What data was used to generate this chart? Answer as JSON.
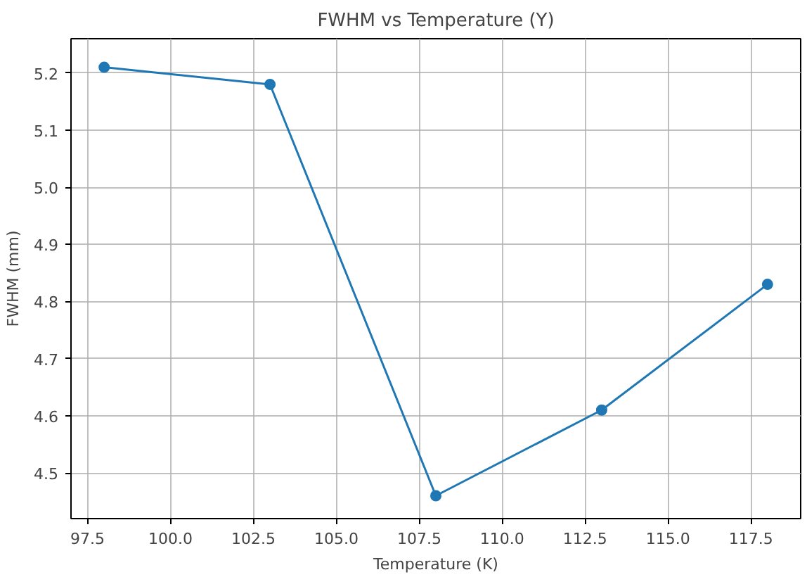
{
  "chart_data": {
    "type": "line",
    "title": "FWHM vs Temperature (Y)",
    "xlabel": "Temperature (K)",
    "ylabel": "FWHM (mm)",
    "x": [
      98,
      103,
      108,
      113,
      118
    ],
    "series": [
      {
        "color": "#1f77b4",
        "values": [
          5.21,
          5.18,
          4.46,
          4.61,
          4.83
        ]
      }
    ],
    "xlim": [
      97.0,
      119.0
    ],
    "ylim": [
      4.42,
      5.26
    ],
    "xticks": [
      {
        "value": 97.5,
        "label": "97.5"
      },
      {
        "value": 100,
        "label": "100.0"
      },
      {
        "value": 102.5,
        "label": "102.5"
      },
      {
        "value": 105,
        "label": "105.0"
      },
      {
        "value": 107.5,
        "label": "107.5"
      },
      {
        "value": 110,
        "label": "110.0"
      },
      {
        "value": 112.5,
        "label": "112.5"
      },
      {
        "value": 115,
        "label": "115.0"
      },
      {
        "value": 117.5,
        "label": "117.5"
      }
    ],
    "yticks": [
      4.5,
      4.6,
      4.7,
      4.8,
      4.9,
      {
        "value": 5.0,
        "label": "5.0"
      },
      5.1,
      5.2
    ],
    "grid": true,
    "marker": "circle",
    "line_style": "solid"
  }
}
